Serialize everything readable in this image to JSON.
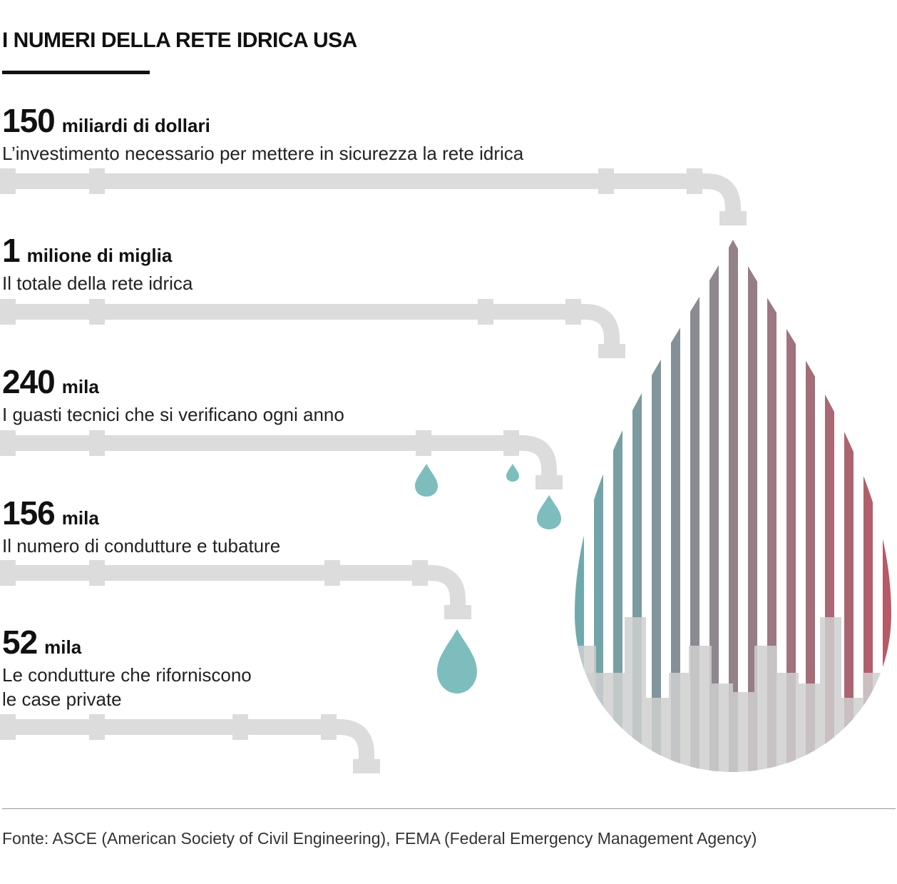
{
  "title": "I NUMERI DELLA RETE IDRICA USA",
  "stats": [
    {
      "number": "150",
      "unit": "miliardi di dollari",
      "description": "L’investimento necessario per mettere in sicurezza la rete idrica"
    },
    {
      "number": "1",
      "unit": "milione di miglia",
      "description": "Il totale della rete idrica"
    },
    {
      "number": "240",
      "unit": "mila",
      "description": "I guasti tecnici che si verificano ogni anno"
    },
    {
      "number": "156",
      "unit": "mila",
      "description": "Il numero di condutture e tubature"
    },
    {
      "number": "52",
      "unit": "mila",
      "description": "Le condutture che riforniscono\nle case private"
    }
  ],
  "source": "Fonte: ASCE (American Society of Civil Engineering), FEMA (Federal Emergency Management Agency)",
  "colors": {
    "pipe": "#dcdcdc",
    "droplet": "#7dbdbd",
    "gradient_left": "#6fa9ad",
    "gradient_right": "#b85866",
    "skyline": "#c9c9c9"
  }
}
